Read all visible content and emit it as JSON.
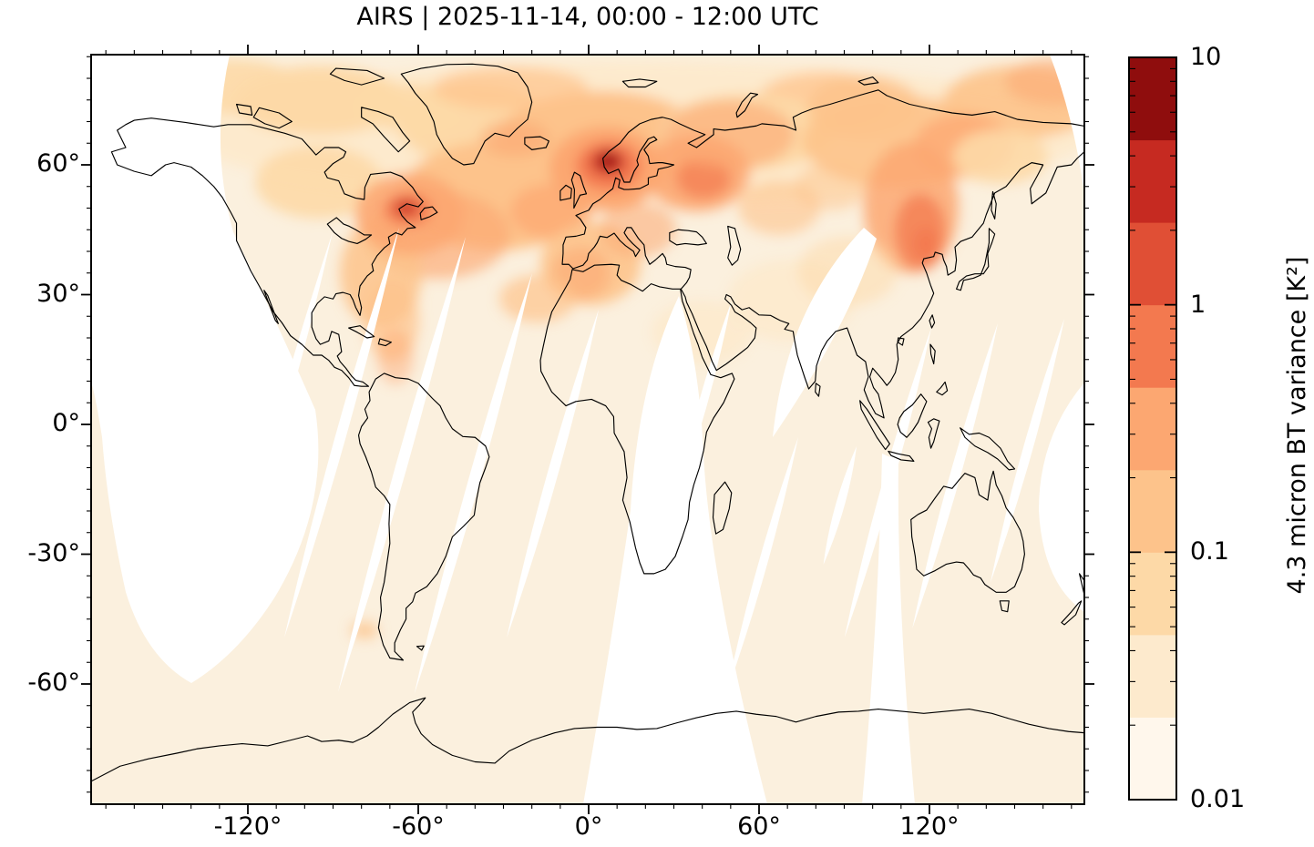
{
  "figure": {
    "title": "AIRS | 2025-11-14, 00:00 - 12:00 UTC",
    "instrument": "AIRS",
    "date": "2025-11-14",
    "time_window": "00:00 - 12:00 UTC"
  },
  "map": {
    "x_tick_labels": [
      "-120°",
      "-60°",
      "0°",
      "60°",
      "120°"
    ],
    "y_tick_labels": [
      "60°",
      "30°",
      "0°",
      "-30°",
      "-60°"
    ]
  },
  "colorbar": {
    "label": "4.3 micron BT variance [K²]",
    "tick_labels": [
      "10",
      "1",
      "0.1",
      "0.01"
    ],
    "scale": "log",
    "min": 0.01,
    "max": 10,
    "levels": [
      0.01,
      0.0215,
      0.0464,
      0.1,
      0.215,
      0.464,
      1,
      2.15,
      4.64,
      10
    ],
    "segment_colors_low_to_high": [
      "#fff7ec",
      "#fdeacd",
      "#fdd9a7",
      "#fdc38b",
      "#fca771",
      "#f3794f",
      "#e04f35",
      "#c62a21",
      "#8f0d0d"
    ]
  },
  "chart_data": {
    "type": "heatmap",
    "title": "AIRS | 2025-11-14, 00:00 - 12:00 UTC",
    "projection": "equirectangular world map (PlateCarree)",
    "x": {
      "label": "longitude",
      "ticks_deg": [
        -120,
        -60,
        0,
        60,
        120
      ],
      "minor_tick_step_deg": 10,
      "range_deg": [
        -175,
        175
      ]
    },
    "y": {
      "label": "latitude",
      "ticks_deg": [
        60,
        30,
        0,
        -30,
        -60
      ],
      "minor_tick_step_deg": 5,
      "range_deg": [
        -88,
        86
      ]
    },
    "value": {
      "label": "4.3 micron BT variance [K²]",
      "scale": "log",
      "range": [
        0.01,
        10
      ]
    },
    "legend_position": "right colorbar, discrete 9 levels",
    "background_value_range": [
      0.01,
      0.05
    ],
    "hotspots": [
      {
        "region": "southern Norway (strongest peak)",
        "lon": 8,
        "lat": 62,
        "peak_value": 8
      },
      {
        "region": "Scandinavia / Nordic seas band",
        "lon": 20,
        "lat": 66,
        "peak_value": 2
      },
      {
        "region": "Finland / NW Russia",
        "lon": 33,
        "lat": 63,
        "peak_value": 1.5
      },
      {
        "region": "Gulf of St. Lawrence / eastern Canada",
        "lon": -62,
        "lat": 48,
        "peak_value": 3
      },
      {
        "region": "NE North America seaboard",
        "lon": -70,
        "lat": 42,
        "peak_value": 0.5
      },
      {
        "region": "North Atlantic south of Greenland",
        "lon": -35,
        "lat": 57,
        "peak_value": 0.6
      },
      {
        "region": "British Isles / North Sea",
        "lon": -2,
        "lat": 54,
        "peak_value": 0.5
      },
      {
        "region": "western / central Europe",
        "lon": 5,
        "lat": 47,
        "peak_value": 0.6
      },
      {
        "region": "central Siberia west of Lake Baikal",
        "lon": 98,
        "lat": 52,
        "peak_value": 0.8
      },
      {
        "region": "NE Siberia / Arctic coast",
        "lon": 130,
        "lat": 72,
        "peak_value": 0.4
      },
      {
        "region": "Canadian Arctic Archipelago",
        "lon": -95,
        "lat": 75,
        "peak_value": 0.3
      },
      {
        "region": "north Greenland coast",
        "lon": -40,
        "lat": 80,
        "peak_value": 0.3
      },
      {
        "region": "southern Chile",
        "lon": -74,
        "lat": -48,
        "peak_value": 0.1
      }
    ],
    "no_data_regions": [
      "NE Pacific / Alaska / Bering Sea sector",
      "regularly spaced slanted inter-orbit swath gaps across tropics and southern mid-latitudes",
      "wide gore through East Africa widening south of Africa toward Antarctica",
      "lens east of Caspian Sea / central Asia",
      "NW Pacific east of Japan at right edge",
      "top-right corner wedge"
    ]
  }
}
